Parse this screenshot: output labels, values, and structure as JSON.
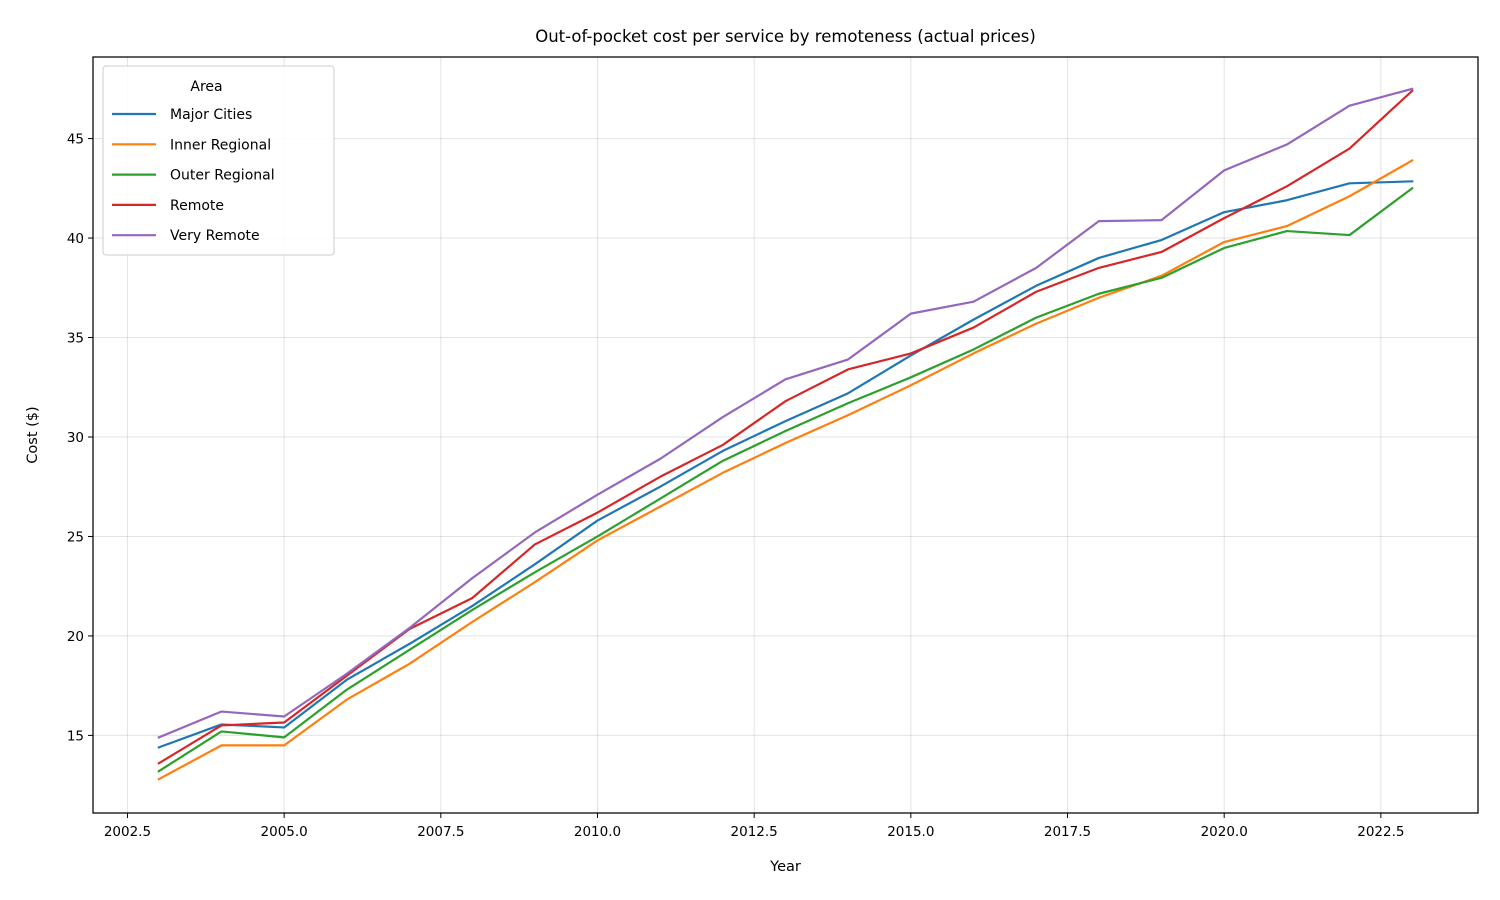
{
  "chart_data": {
    "type": "line",
    "title": "Out-of-pocket cost per service by remoteness (actual prices)",
    "xlabel": "Year",
    "ylabel": "Cost ($)",
    "xlim": [
      2001.95,
      2024.05
    ],
    "ylim": [
      11.1,
      49.1
    ],
    "x_ticks": [
      2002.5,
      2005.0,
      2007.5,
      2010.0,
      2012.5,
      2015.0,
      2017.5,
      2020.0,
      2022.5
    ],
    "x_tick_labels": [
      "2002.5",
      "2005.0",
      "2007.5",
      "2010.0",
      "2012.5",
      "2015.0",
      "2017.5",
      "2020.0",
      "2022.5"
    ],
    "y_ticks": [
      15,
      20,
      25,
      30,
      35,
      40,
      45
    ],
    "y_tick_labels": [
      "15",
      "20",
      "25",
      "30",
      "35",
      "40",
      "45"
    ],
    "grid": true,
    "legend": {
      "title": "Area",
      "position": "top-left"
    },
    "x": [
      2003,
      2004,
      2005,
      2006,
      2007,
      2008,
      2009,
      2010,
      2011,
      2012,
      2013,
      2014,
      2015,
      2016,
      2017,
      2018,
      2019,
      2020,
      2021,
      2022,
      2023
    ],
    "series": [
      {
        "name": "Major Cities",
        "color": "#1f77b4",
        "values": [
          14.4,
          15.55,
          15.4,
          17.8,
          19.6,
          21.5,
          23.6,
          25.8,
          27.5,
          29.3,
          30.8,
          32.2,
          34.1,
          35.9,
          37.6,
          39.0,
          39.9,
          41.3,
          41.9,
          42.75,
          42.85
        ]
      },
      {
        "name": "Inner Regional",
        "color": "#ff7f0e",
        "values": [
          12.8,
          14.5,
          14.5,
          16.8,
          18.6,
          20.7,
          22.7,
          24.8,
          26.5,
          28.2,
          29.7,
          31.1,
          32.6,
          34.2,
          35.7,
          37.0,
          38.1,
          39.8,
          40.6,
          42.1,
          43.9
        ]
      },
      {
        "name": "Outer Regional",
        "color": "#2ca02c",
        "values": [
          13.2,
          15.2,
          14.9,
          17.3,
          19.3,
          21.3,
          23.2,
          25.0,
          26.9,
          28.8,
          30.3,
          31.7,
          33.0,
          34.4,
          36.0,
          37.2,
          38.0,
          39.5,
          40.35,
          40.15,
          42.5
        ]
      },
      {
        "name": "Remote",
        "color": "#d62728",
        "values": [
          13.6,
          15.5,
          15.65,
          18.0,
          20.35,
          21.9,
          24.6,
          26.2,
          28.0,
          29.6,
          31.8,
          33.4,
          34.2,
          35.5,
          37.3,
          38.5,
          39.3,
          41.0,
          42.6,
          44.5,
          47.4
        ]
      },
      {
        "name": "Very Remote",
        "color": "#9467bd",
        "values": [
          14.9,
          16.2,
          15.95,
          18.1,
          20.4,
          22.9,
          25.2,
          27.1,
          28.9,
          31.0,
          32.9,
          33.9,
          36.2,
          36.8,
          38.5,
          40.85,
          40.9,
          43.4,
          44.7,
          46.65,
          47.5
        ]
      }
    ]
  }
}
